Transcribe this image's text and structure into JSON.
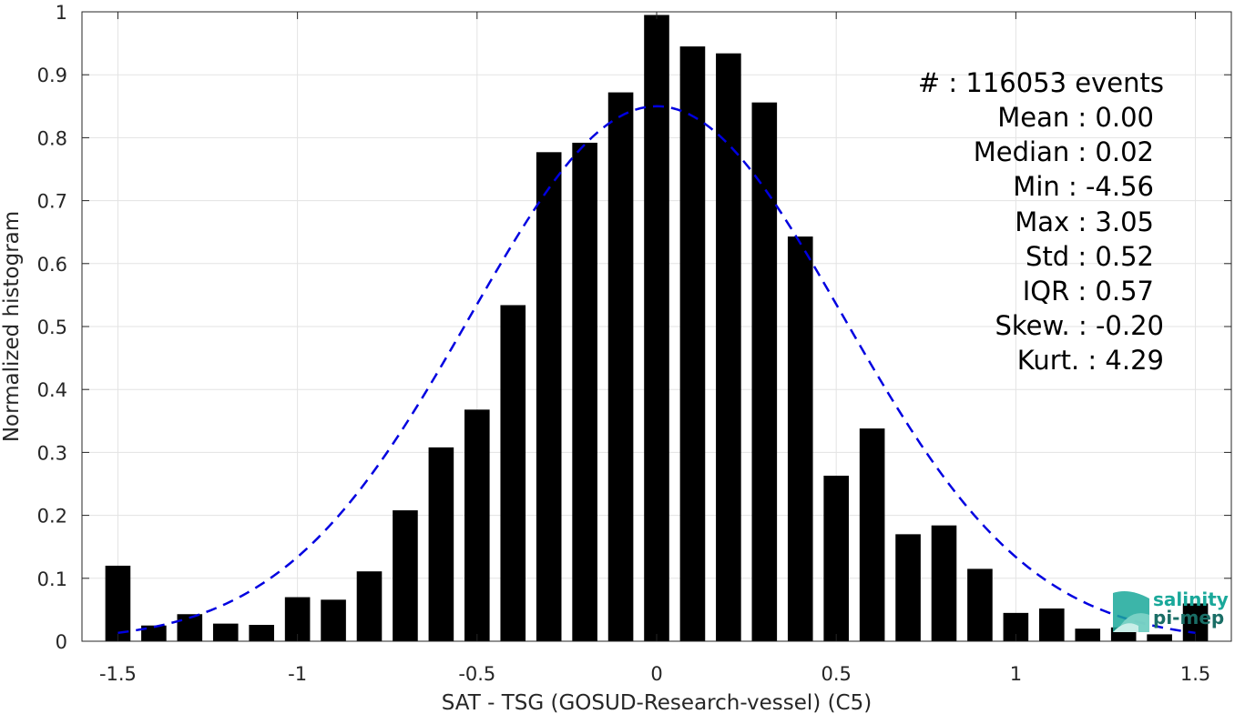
{
  "chart_data": {
    "type": "bar",
    "title": "",
    "xlabel": "SAT - TSG (GOSUD-Research-vessel) (C5)",
    "ylabel": "Normalized histogram",
    "xlim": [
      -1.6,
      1.6
    ],
    "ylim": [
      0,
      1
    ],
    "grid": true,
    "bar_color": "#000000",
    "fit_color": "#0000e0",
    "x_ticks": [
      "-1.5",
      "-1",
      "-0.5",
      "0",
      "0.5",
      "1",
      "1.5"
    ],
    "x_tick_values": [
      -1.5,
      -1,
      -0.5,
      0,
      0.5,
      1,
      1.5
    ],
    "y_ticks": [
      "0",
      "0.1",
      "0.2",
      "0.3",
      "0.4",
      "0.5",
      "0.6",
      "0.7",
      "0.8",
      "0.9",
      "1"
    ],
    "y_tick_values": [
      0,
      0.1,
      0.2,
      0.3,
      0.4,
      0.5,
      0.6,
      0.7,
      0.8,
      0.9,
      1
    ],
    "bars": {
      "x": [
        -1.5,
        -1.4,
        -1.3,
        -1.2,
        -1.1,
        -1.0,
        -0.9,
        -0.8,
        -0.7,
        -0.6,
        -0.5,
        -0.4,
        -0.3,
        -0.2,
        -0.1,
        0.0,
        0.1,
        0.2,
        0.3,
        0.4,
        0.5,
        0.6,
        0.7,
        0.8,
        0.9,
        1.0,
        1.1,
        1.2,
        1.3,
        1.4,
        1.5
      ],
      "values": [
        0.12,
        0.025,
        0.043,
        0.028,
        0.026,
        0.07,
        0.066,
        0.111,
        0.208,
        0.308,
        0.368,
        0.534,
        0.777,
        0.792,
        0.872,
        0.995,
        0.945,
        0.934,
        0.856,
        0.643,
        0.263,
        0.338,
        0.17,
        0.184,
        0.115,
        0.045,
        0.052,
        0.02,
        0.022,
        0.011,
        0.06
      ],
      "width": 0.07
    },
    "fit": {
      "type": "gaussian",
      "mean": 0.0,
      "std": 0.52,
      "peak": 0.85,
      "x_range": [
        -1.5,
        1.5
      ],
      "style": "dashed"
    },
    "annotations": {
      "count_label": "#  : 116053 events",
      "lines": [
        "Mean : 0.00",
        "Median : 0.02",
        "Min : -4.56",
        "Max : 3.05",
        "Std : 0.52",
        "IQR : 0.57",
        "Skew. : -0.20",
        "Kurt. : 4.29"
      ]
    }
  },
  "logo": {
    "line1": "salinity",
    "line2": "pi-mep",
    "color": "#1aa89a",
    "dark_color": "#1a6e66"
  }
}
